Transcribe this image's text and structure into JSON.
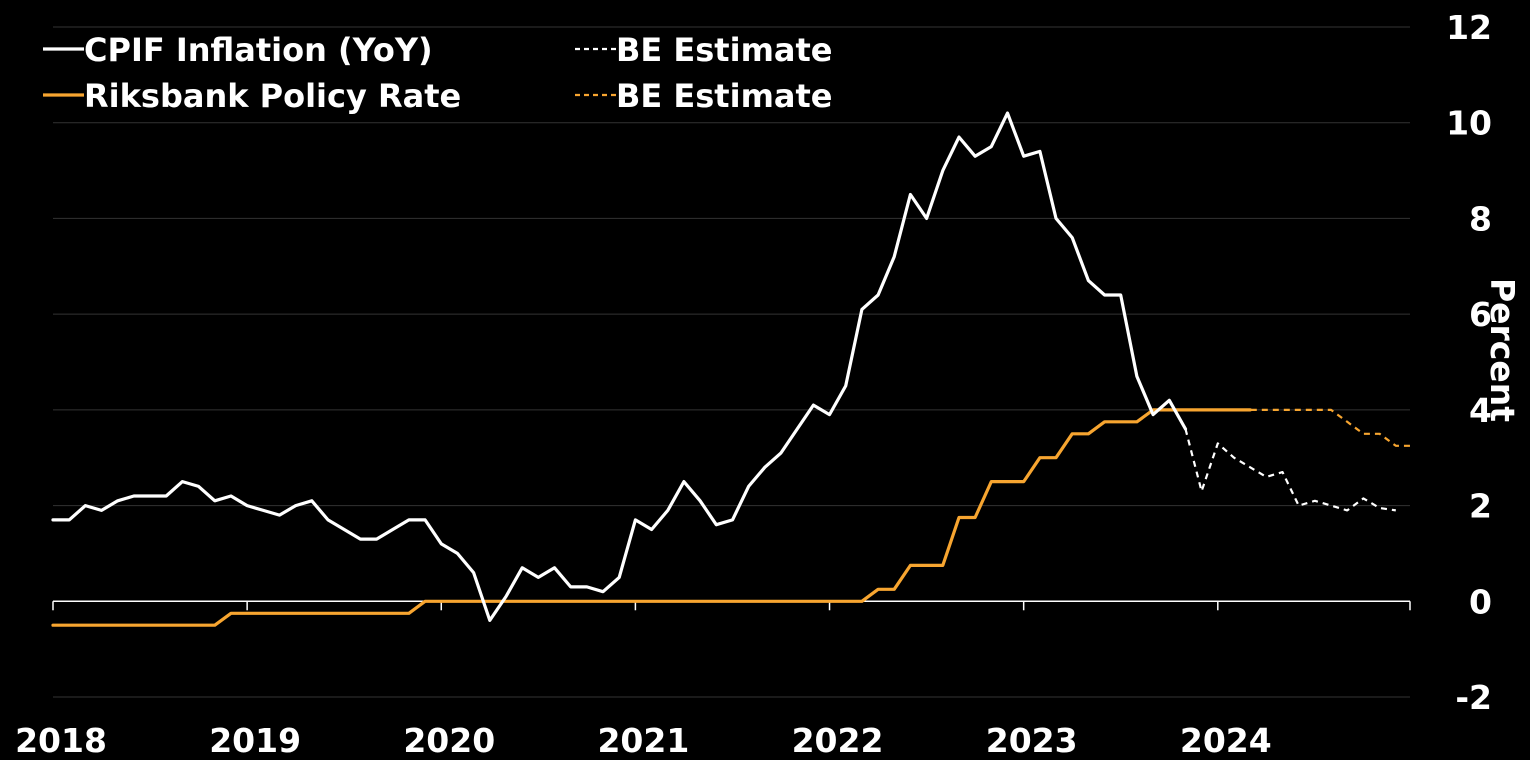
{
  "chart_data": {
    "type": "line",
    "ylabel": "Percent",
    "ylim": [
      -2,
      12
    ],
    "yticks": [
      "-2",
      "0",
      "2",
      "4",
      "6",
      "8",
      "10",
      "12"
    ],
    "xticks": [
      "2018",
      "2019",
      "2020",
      "2021",
      "2022",
      "2023",
      "2024"
    ],
    "xlim": [
      2018.0,
      2024.99
    ],
    "grid": true,
    "legend_position": "top-left",
    "colors": {
      "cpif": "#ffffff",
      "policy": "#f7a530",
      "background": "#000000",
      "grid": "#333333"
    },
    "series": [
      {
        "name": "CPIF Inflation (YoY)",
        "color": "#ffffff",
        "style": "solid",
        "start": "2018-01",
        "values": [
          1.7,
          1.7,
          2.0,
          1.9,
          2.1,
          2.2,
          2.2,
          2.2,
          2.5,
          2.4,
          2.1,
          2.2,
          2.0,
          1.9,
          1.8,
          2.0,
          2.1,
          1.7,
          1.5,
          1.3,
          1.3,
          1.5,
          1.7,
          1.7,
          1.2,
          1.0,
          0.6,
          -0.4,
          0.1,
          0.7,
          0.5,
          0.7,
          0.3,
          0.3,
          0.2,
          0.5,
          1.7,
          1.5,
          1.9,
          2.5,
          2.1,
          1.6,
          1.7,
          2.4,
          2.8,
          3.1,
          3.6,
          4.1,
          3.9,
          4.5,
          6.1,
          6.4,
          7.2,
          8.5,
          8.0,
          9.0,
          9.7,
          9.3,
          9.5,
          10.2,
          9.3,
          9.4,
          8.0,
          7.6,
          6.7,
          6.4,
          6.4,
          4.7,
          3.9,
          4.2,
          3.6
        ]
      },
      {
        "name": "BE Estimate",
        "color": "#ffffff",
        "style": "dashed",
        "start": "2023-11",
        "values": [
          3.6,
          2.3,
          3.3,
          3.0,
          2.8,
          2.6,
          2.7,
          2.0,
          2.1,
          2.0,
          1.9,
          2.15,
          1.95,
          1.9
        ]
      },
      {
        "name": "Riksbank Policy Rate",
        "color": "#f7a530",
        "style": "solid",
        "start": "2018-01",
        "values": [
          -0.5,
          -0.5,
          -0.5,
          -0.5,
          -0.5,
          -0.5,
          -0.5,
          -0.5,
          -0.5,
          -0.5,
          -0.5,
          -0.25,
          -0.25,
          -0.25,
          -0.25,
          -0.25,
          -0.25,
          -0.25,
          -0.25,
          -0.25,
          -0.25,
          -0.25,
          -0.25,
          0,
          0,
          0,
          0,
          0,
          0,
          0,
          0,
          0,
          0,
          0,
          0,
          0,
          0,
          0,
          0,
          0,
          0,
          0,
          0,
          0,
          0,
          0,
          0,
          0,
          0,
          0,
          0,
          0.25,
          0.25,
          0.75,
          0.75,
          0.75,
          1.75,
          1.75,
          2.5,
          2.5,
          2.5,
          3.0,
          3.0,
          3.5,
          3.5,
          3.75,
          3.75,
          3.75,
          4.0,
          4.0,
          4.0,
          4.0,
          4.0,
          4.0,
          4.0
        ]
      },
      {
        "name": "BE Estimate",
        "color": "#f7a530",
        "style": "dashed",
        "start": "2024-01",
        "values": [
          4.0,
          4.0,
          4.0,
          4.0,
          4.0,
          4.0,
          4.0,
          4.0,
          3.75,
          3.5,
          3.5,
          3.25,
          3.25
        ]
      }
    ]
  }
}
